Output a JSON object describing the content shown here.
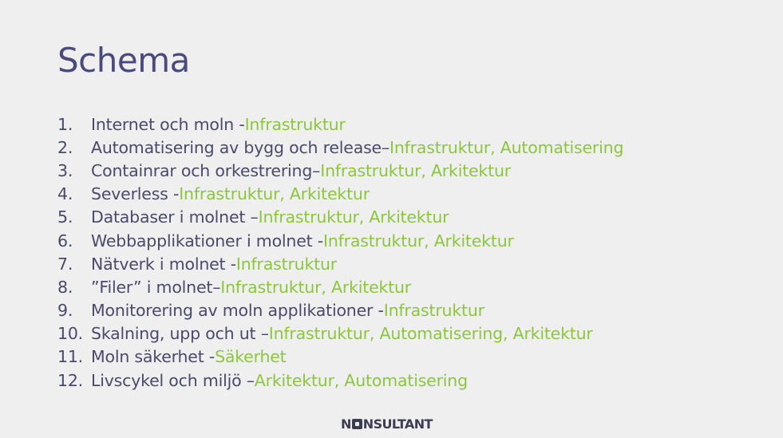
{
  "slide": {
    "title": "Schema",
    "items": [
      {
        "number": "1.",
        "text": "Internet och moln - ",
        "tags": "Infrastruktur"
      },
      {
        "number": "2.",
        "text": "Automatisering av bygg och release– ",
        "tags": "Infrastruktur, Automatisering"
      },
      {
        "number": "3.",
        "text": "Containrar och orkestrering– ",
        "tags": "Infrastruktur, Arkitektur"
      },
      {
        "number": "4.",
        "text": "Severless - ",
        "tags": "Infrastruktur, Arkitektur"
      },
      {
        "number": "5.",
        "text": "Databaser i molnet – ",
        "tags": "Infrastruktur, Arkitektur"
      },
      {
        "number": "6.",
        "text": "Webbapplikationer i molnet - ",
        "tags": "Infrastruktur, Arkitektur"
      },
      {
        "number": "7.",
        "text": "Nätverk i molnet - ",
        "tags": "Infrastruktur"
      },
      {
        "number": "8.",
        "text": "”Filer” i molnet– ",
        "tags": "Infrastruktur, Arkitektur"
      },
      {
        "number": "9.",
        "text": "Monitorering av moln applikationer - ",
        "tags": "Infrastruktur"
      },
      {
        "number": "10.",
        "text": "Skalning, upp och ut – ",
        "tags": "Infrastruktur, Automatisering, Arkitektur"
      },
      {
        "number": "11.",
        "text": "Moln säkerhet - ",
        "tags": "Säkerhet"
      },
      {
        "number": "12.",
        "text": "Livscykel och miljö – ",
        "tags": "Arkitektur, Automatisering"
      }
    ],
    "logo": {
      "first": "N",
      "rest": "NSULTANT"
    }
  },
  "colors": {
    "background": "#efeff0",
    "title": "#4b4a7d",
    "text": "#4a4a6a",
    "accent_green": "#8cc63f",
    "logo": "#3d3d52"
  }
}
